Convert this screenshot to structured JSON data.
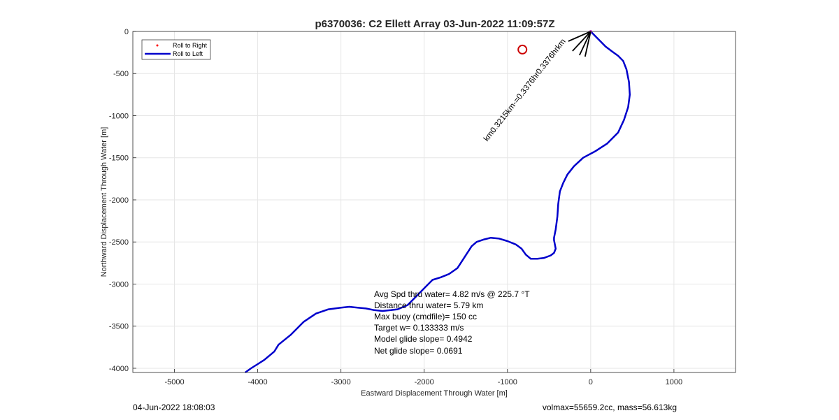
{
  "chart_data": {
    "type": "line",
    "title": "p6370036: C2 Ellett Array 03-Jun-2022 11:09:57Z",
    "xlabel": "Eastward Displacement Through Water [m]",
    "ylabel": "Northward Displacement Through Water [m]",
    "xlim": [
      -5500,
      1740
    ],
    "ylim": [
      -4050,
      0
    ],
    "xticks": [
      -5000,
      -4000,
      -3000,
      -2000,
      -1000,
      0,
      1000
    ],
    "yticks": [
      0,
      -500,
      -1000,
      -1500,
      -2000,
      -2500,
      -3000,
      -3500,
      -4000
    ],
    "grid": true,
    "legend": {
      "position": "top-left",
      "entries": [
        {
          "label": "Roll to Right",
          "color": "#ff0000",
          "marker": "dot"
        },
        {
          "label": "Roll to Left",
          "color": "#0000cc",
          "marker": "line"
        }
      ]
    },
    "series": [
      {
        "name": "Roll to Left",
        "color": "#0000cc",
        "x": [
          0,
          100,
          180,
          260,
          330,
          390,
          430,
          460,
          470,
          450,
          400,
          330,
          200,
          60,
          -90,
          -200,
          -280,
          -330,
          -370,
          -390,
          -400,
          -420,
          -440,
          -440,
          -430,
          -420,
          -440,
          -480,
          -560,
          -640,
          -720,
          -780,
          -830,
          -900,
          -1000,
          -1100,
          -1200,
          -1280,
          -1370,
          -1430,
          -1600,
          -1700,
          -1800,
          -1900,
          -2000,
          -2100,
          -2200,
          -2320,
          -2400,
          -2500,
          -2600,
          -2700,
          -2800,
          -2900,
          -3000,
          -3150,
          -3300,
          -3450,
          -3600,
          -3750,
          -3800,
          -3860,
          -3920,
          -4000,
          -4080,
          -4150
        ],
        "y": [
          0,
          -100,
          -180,
          -240,
          -290,
          -350,
          -450,
          -600,
          -750,
          -900,
          -1050,
          -1200,
          -1330,
          -1420,
          -1500,
          -1600,
          -1700,
          -1800,
          -1900,
          -2050,
          -2200,
          -2350,
          -2450,
          -2480,
          -2530,
          -2580,
          -2630,
          -2660,
          -2690,
          -2700,
          -2700,
          -2650,
          -2580,
          -2530,
          -2490,
          -2460,
          -2450,
          -2470,
          -2500,
          -2550,
          -2810,
          -2880,
          -2920,
          -2950,
          -3050,
          -3150,
          -3250,
          -3300,
          -3310,
          -3320,
          -3310,
          -3290,
          -3280,
          -3270,
          -3280,
          -3300,
          -3350,
          -3450,
          -3600,
          -3720,
          -3800,
          -3850,
          -3900,
          -3950,
          -4000,
          -4050
        ]
      }
    ],
    "markers": [
      {
        "label": "circle",
        "x": -820,
        "y": -215,
        "color": "#cc0000"
      }
    ],
    "vectors": [
      {
        "x": -50,
        "y": -30,
        "dx": -40,
        "dy": 70
      },
      {
        "x": -60,
        "y": -20,
        "dx": -30,
        "dy": 60
      },
      {
        "x": -70,
        "y": -10,
        "dx": -20,
        "dy": 50
      }
    ]
  },
  "annotation": {
    "rotated_label": "– rotated vector labels reading 0.3376hr – 0.3215km",
    "rotated_text": " - - ,  -                 "
  },
  "stats": [
    "Avg Spd thru water=  4.82 m/s @ 225.7 °T",
    "Distance thru water=  5.79 km",
    "Max buoy (cmdfile)= 150 cc",
    "Target w= 0.133333 m/s",
    "Model glide slope= 0.4942",
    "Net glide slope= 0.0691"
  ],
  "footer": {
    "left": "04-Jun-2022 18:08:03",
    "right": "volmax=55659.2cc, mass=56.613kg"
  }
}
